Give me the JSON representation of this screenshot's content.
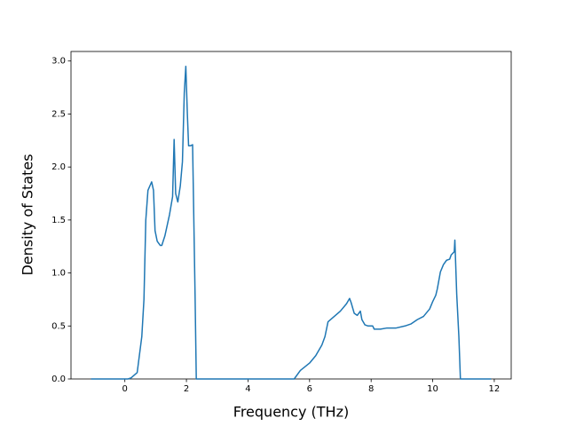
{
  "chart_data": {
    "type": "line",
    "xlabel": "Frequency (THz)",
    "ylabel": "Density of States",
    "x": [
      -1.1,
      0.1,
      0.2,
      0.4,
      0.55,
      0.62,
      0.68,
      0.75,
      0.87,
      0.93,
      0.98,
      1.05,
      1.15,
      1.2,
      1.3,
      1.45,
      1.55,
      1.6,
      1.65,
      1.72,
      1.8,
      1.87,
      1.93,
      1.98,
      2.03,
      2.07,
      2.13,
      2.2,
      2.28,
      2.32,
      5.5,
      5.7,
      6.0,
      6.2,
      6.4,
      6.5,
      6.6,
      6.8,
      7.0,
      7.2,
      7.3,
      7.35,
      7.45,
      7.55,
      7.65,
      7.7,
      7.8,
      7.9,
      8.05,
      8.1,
      8.3,
      8.5,
      8.8,
      9.1,
      9.3,
      9.5,
      9.7,
      9.9,
      10.0,
      10.1,
      10.15,
      10.25,
      10.35,
      10.45,
      10.55,
      10.6,
      10.7,
      10.72,
      10.78,
      10.85,
      10.9,
      11.9
    ],
    "series": [
      {
        "color": "#1f77b4",
        "values": [
          0,
          0,
          0.01,
          0.06,
          0.4,
          0.75,
          1.5,
          1.78,
          1.86,
          1.78,
          1.4,
          1.3,
          1.26,
          1.26,
          1.35,
          1.55,
          1.72,
          2.26,
          1.75,
          1.67,
          1.82,
          2.05,
          2.7,
          2.95,
          2.5,
          2.2,
          2.2,
          2.21,
          0.8,
          0,
          0,
          0.08,
          0.15,
          0.22,
          0.32,
          0.4,
          0.54,
          0.59,
          0.64,
          0.71,
          0.76,
          0.72,
          0.62,
          0.6,
          0.64,
          0.56,
          0.51,
          0.5,
          0.5,
          0.47,
          0.47,
          0.48,
          0.48,
          0.5,
          0.52,
          0.56,
          0.59,
          0.66,
          0.73,
          0.79,
          0.85,
          1.01,
          1.08,
          1.12,
          1.13,
          1.17,
          1.2,
          1.31,
          0.8,
          0.4,
          0,
          0
        ]
      }
    ],
    "xlim": [
      -1.75,
      12.55
    ],
    "ylim": [
      0,
      3.09
    ],
    "xticks": [
      0,
      2,
      4,
      6,
      8,
      10,
      12
    ],
    "yticks": [
      {
        "value": 0,
        "label": "0.0"
      },
      0.5,
      {
        "value": 1,
        "label": "1.0"
      },
      1.5,
      {
        "value": 2,
        "label": "2.0"
      },
      2.5,
      {
        "value": 3,
        "label": "3.0"
      }
    ]
  }
}
